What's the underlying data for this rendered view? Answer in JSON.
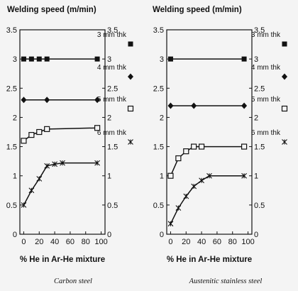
{
  "chart_data": [
    {
      "type": "line",
      "title": "Welding speed (m/min)",
      "xlabel": "% He in Ar-He mixture",
      "caption": "Carbon steel",
      "xlim": [
        -5,
        105
      ],
      "ylim": [
        0,
        3.5
      ],
      "xticks": [
        "0",
        "20",
        "40",
        "60",
        "80",
        "100"
      ],
      "yticks": [
        "0",
        "0.5",
        "1",
        "1.5",
        "2",
        "2.5",
        "3",
        "3.5"
      ],
      "grid": false,
      "legend_position": "right, outside plot between axes",
      "series": [
        {
          "name": "3 mm thk",
          "marker": "filled-square",
          "x": [
            0,
            10,
            20,
            30,
            95
          ],
          "y": [
            3.0,
            3.0,
            3.0,
            3.0,
            3.0
          ]
        },
        {
          "name": "4 mm thk",
          "marker": "filled-diamond",
          "x": [
            0,
            30,
            95
          ],
          "y": [
            2.3,
            2.3,
            2.3
          ]
        },
        {
          "name": "5 mm thk",
          "marker": "open-square",
          "x": [
            0,
            10,
            20,
            30,
            95
          ],
          "y": [
            1.6,
            1.7,
            1.75,
            1.8,
            1.82
          ]
        },
        {
          "name": "6 mm thk",
          "marker": "star",
          "x": [
            0,
            10,
            20,
            30,
            40,
            50,
            95
          ],
          "y": [
            0.5,
            0.75,
            0.95,
            1.17,
            1.2,
            1.22,
            1.22
          ]
        }
      ]
    },
    {
      "type": "line",
      "title": "Welding speed (m/min)",
      "xlabel": "% He in Ar-He mixture",
      "caption": "Austenitic stainless steel",
      "xlim": [
        -5,
        105
      ],
      "ylim": [
        0,
        3.5
      ],
      "xticks": [
        "0",
        "20",
        "40",
        "60",
        "80",
        "100"
      ],
      "yticks": [
        "0",
        "0.5",
        "1",
        "1.5",
        "2",
        "2.5",
        "3",
        "3.5"
      ],
      "grid": false,
      "series": [
        {
          "name": "3 mm thk",
          "marker": "filled-square",
          "x": [
            0,
            95
          ],
          "y": [
            3.0,
            3.0
          ]
        },
        {
          "name": "4 mm thk",
          "marker": "filled-diamond",
          "x": [
            0,
            30,
            95
          ],
          "y": [
            2.2,
            2.2,
            2.2
          ]
        },
        {
          "name": "5 mm thk",
          "marker": "open-square",
          "x": [
            0,
            10,
            20,
            30,
            40,
            95
          ],
          "y": [
            1.0,
            1.3,
            1.42,
            1.5,
            1.5,
            1.5
          ]
        },
        {
          "name": "6 mm thk",
          "marker": "star",
          "x": [
            0,
            10,
            20,
            30,
            40,
            50,
            95
          ],
          "y": [
            0.18,
            0.45,
            0.65,
            0.82,
            0.92,
            1.0,
            1.0
          ]
        }
      ]
    }
  ]
}
